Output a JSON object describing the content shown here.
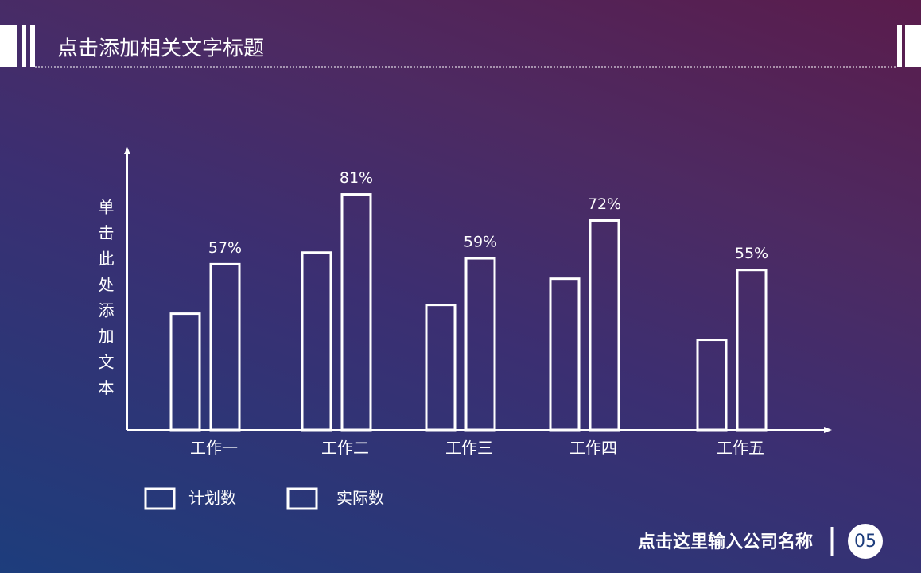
{
  "slide": {
    "title": "点击添加相关文字标题",
    "company": "点击这里输入公司名称",
    "page": "05"
  },
  "chart_data": {
    "type": "bar",
    "y_label": "单击此处添加文本",
    "categories": [
      "工作一",
      "工作二",
      "工作三",
      "工作四",
      "工作五"
    ],
    "series": [
      {
        "name": "计划数",
        "color": "#ffffff",
        "values": [
          40,
          61,
          43,
          52,
          31
        ]
      },
      {
        "name": "实际数",
        "color": "#ffffff",
        "values": [
          57,
          81,
          59,
          72,
          55
        ],
        "value_labels": [
          "57%",
          "81%",
          "59%",
          "72%",
          "55%"
        ]
      }
    ]
  }
}
